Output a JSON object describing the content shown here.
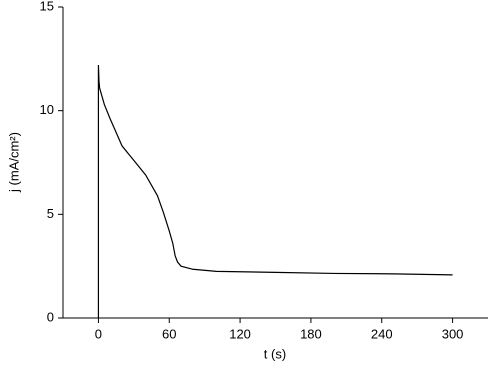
{
  "chart_data": {
    "type": "line",
    "x_label": "t (s)",
    "y_label": "j (mA/cm²)",
    "x": [
      0,
      0,
      0.5,
      1,
      5,
      10,
      20,
      30,
      40,
      50,
      55,
      60,
      63,
      65,
      67,
      70,
      80,
      100,
      150,
      200,
      250,
      300
    ],
    "series": [
      {
        "color": "#000000",
        "values": [
          0,
          12.2,
          11.4,
          11.1,
          10.3,
          9.6,
          8.3,
          7.6,
          6.9,
          5.9,
          5.1,
          4.2,
          3.6,
          3.0,
          2.7,
          2.5,
          2.35,
          2.25,
          2.2,
          2.15,
          2.13,
          2.08
        ]
      }
    ],
    "xlim": [
      -30,
      330
    ],
    "xticks": [
      0,
      60,
      120,
      180,
      240,
      300
    ],
    "ylim": [
      0,
      15
    ],
    "yticks": [
      0,
      5,
      10,
      15
    ]
  }
}
